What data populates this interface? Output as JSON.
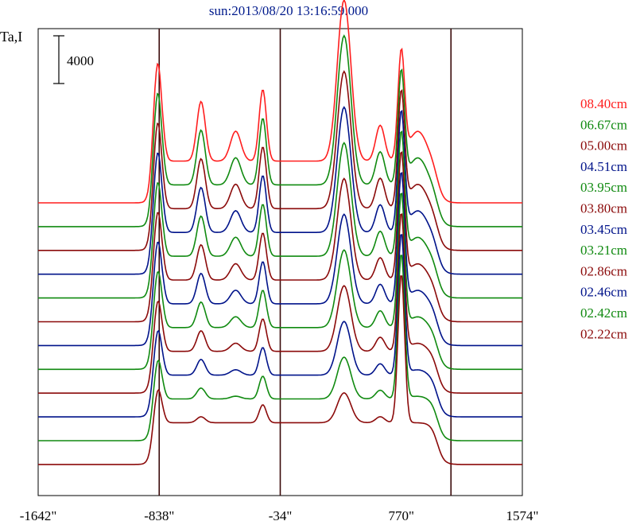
{
  "chart_data": {
    "type": "line",
    "title": "sun:2013/08/20 13:16:59.000",
    "ylabel": "Ta,I",
    "x_ticks": [
      "-1642\"",
      "-838\"",
      "-34\"",
      "770\"",
      "1574\""
    ],
    "x_tick_values": [
      -1642,
      -838,
      -34,
      770,
      1574
    ],
    "xlim": [
      -1642,
      1574
    ],
    "scale_bar_label": "4000",
    "scale_bar_value": 4000,
    "vertical_markers": [
      -838,
      -34,
      1100
    ],
    "grid": false,
    "legend_placement": "right",
    "series": [
      {
        "name": "08.40cm",
        "color": "#ff1e1e"
      },
      {
        "name": "06.67cm",
        "color": "#108a10"
      },
      {
        "name": "05.00cm",
        "color": "#8b0a0a"
      },
      {
        "name": "04.51cm",
        "color": "#00138a"
      },
      {
        "name": "03.95cm",
        "color": "#108a10"
      },
      {
        "name": "03.80cm",
        "color": "#8b0a0a"
      },
      {
        "name": "03.45cm",
        "color": "#00138a"
      },
      {
        "name": "03.21cm",
        "color": "#108a10"
      },
      {
        "name": "02.86cm",
        "color": "#8b0a0a"
      },
      {
        "name": "02.46cm",
        "color": "#00138a"
      },
      {
        "name": "02.42cm",
        "color": "#108a10"
      },
      {
        "name": "02.22cm",
        "color": "#8b0a0a"
      }
    ]
  }
}
